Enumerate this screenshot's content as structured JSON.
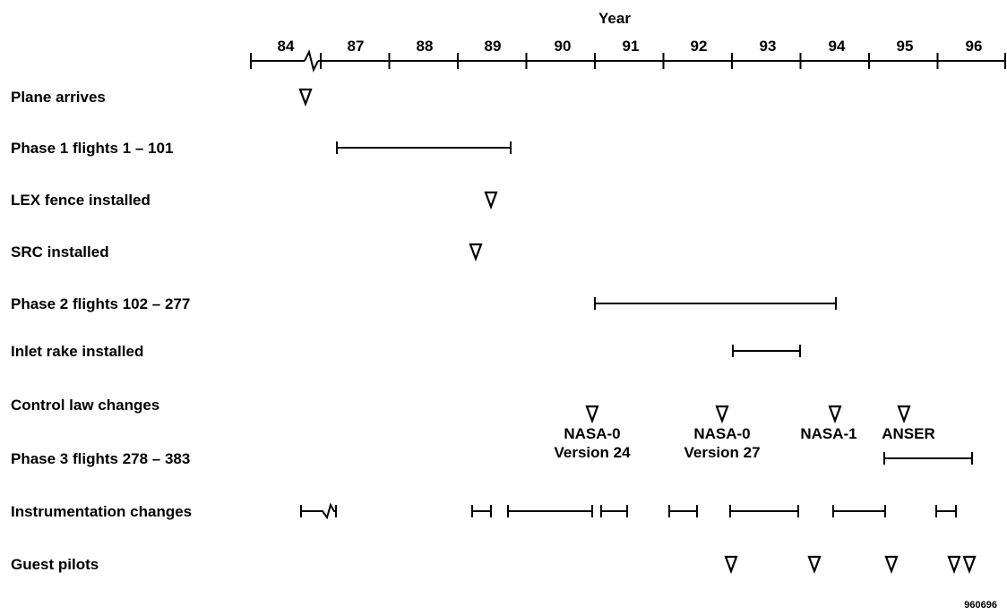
{
  "chart_data": {
    "type": "timeline",
    "axis_title": "Year",
    "year_ticks": [
      "84",
      "87",
      "88",
      "89",
      "90",
      "91",
      "92",
      "93",
      "94",
      "95",
      "96"
    ],
    "axis_break_after": "84",
    "rows": [
      {
        "label": "Plane arrives",
        "markers": [
          84.6
        ],
        "bars": []
      },
      {
        "label": "Phase 1 flights 1 – 101",
        "markers": [],
        "bars": [
          [
            87.2,
            89.8
          ]
        ]
      },
      {
        "label": "LEX fence installed",
        "markers": [
          89.5
        ],
        "bars": []
      },
      {
        "label": "SRC installed",
        "markers": [
          89.25
        ],
        "bars": []
      },
      {
        "label": "Phase 2 flights 102 – 277",
        "markers": [],
        "bars": [
          [
            91.0,
            94.55
          ]
        ]
      },
      {
        "label": "Inlet rake installed",
        "markers": [],
        "bars": [
          [
            93.0,
            94.0
          ]
        ]
      },
      {
        "label": "Control law changes",
        "markers": [
          90.95,
          92.85,
          94.5,
          95.5
        ],
        "bars": []
      },
      {
        "label": "Phase 3 flights 278 – 383",
        "markers": [],
        "bars": [
          [
            95.2,
            96.5
          ]
        ]
      },
      {
        "label": "Instrumentation changes",
        "markers": [],
        "bars": [
          [
            89.2,
            89.5
          ],
          [
            89.6,
            90.95
          ],
          [
            91.1,
            91.5
          ],
          [
            92.1,
            92.5
          ],
          [
            93.0,
            94.0
          ],
          [
            94.5,
            95.25
          ],
          [
            96.0,
            96.3
          ]
        ],
        "break_bar": [
          84.0,
          84.6
        ]
      },
      {
        "label": "Guest pilots",
        "markers": [
          93.0,
          94.2,
          95.35,
          96.2,
          96.4
        ],
        "bars": []
      }
    ],
    "annotations": [
      {
        "lines": [
          "NASA-0",
          "Version 24"
        ],
        "at": 90.95
      },
      {
        "lines": [
          "NASA-0",
          "Version 27"
        ],
        "at": 92.85
      },
      {
        "lines": [
          "NASA-1"
        ],
        "at": 94.5
      },
      {
        "lines": [
          "ANSER"
        ],
        "at": 95.5
      }
    ]
  },
  "figure_number": "960696"
}
